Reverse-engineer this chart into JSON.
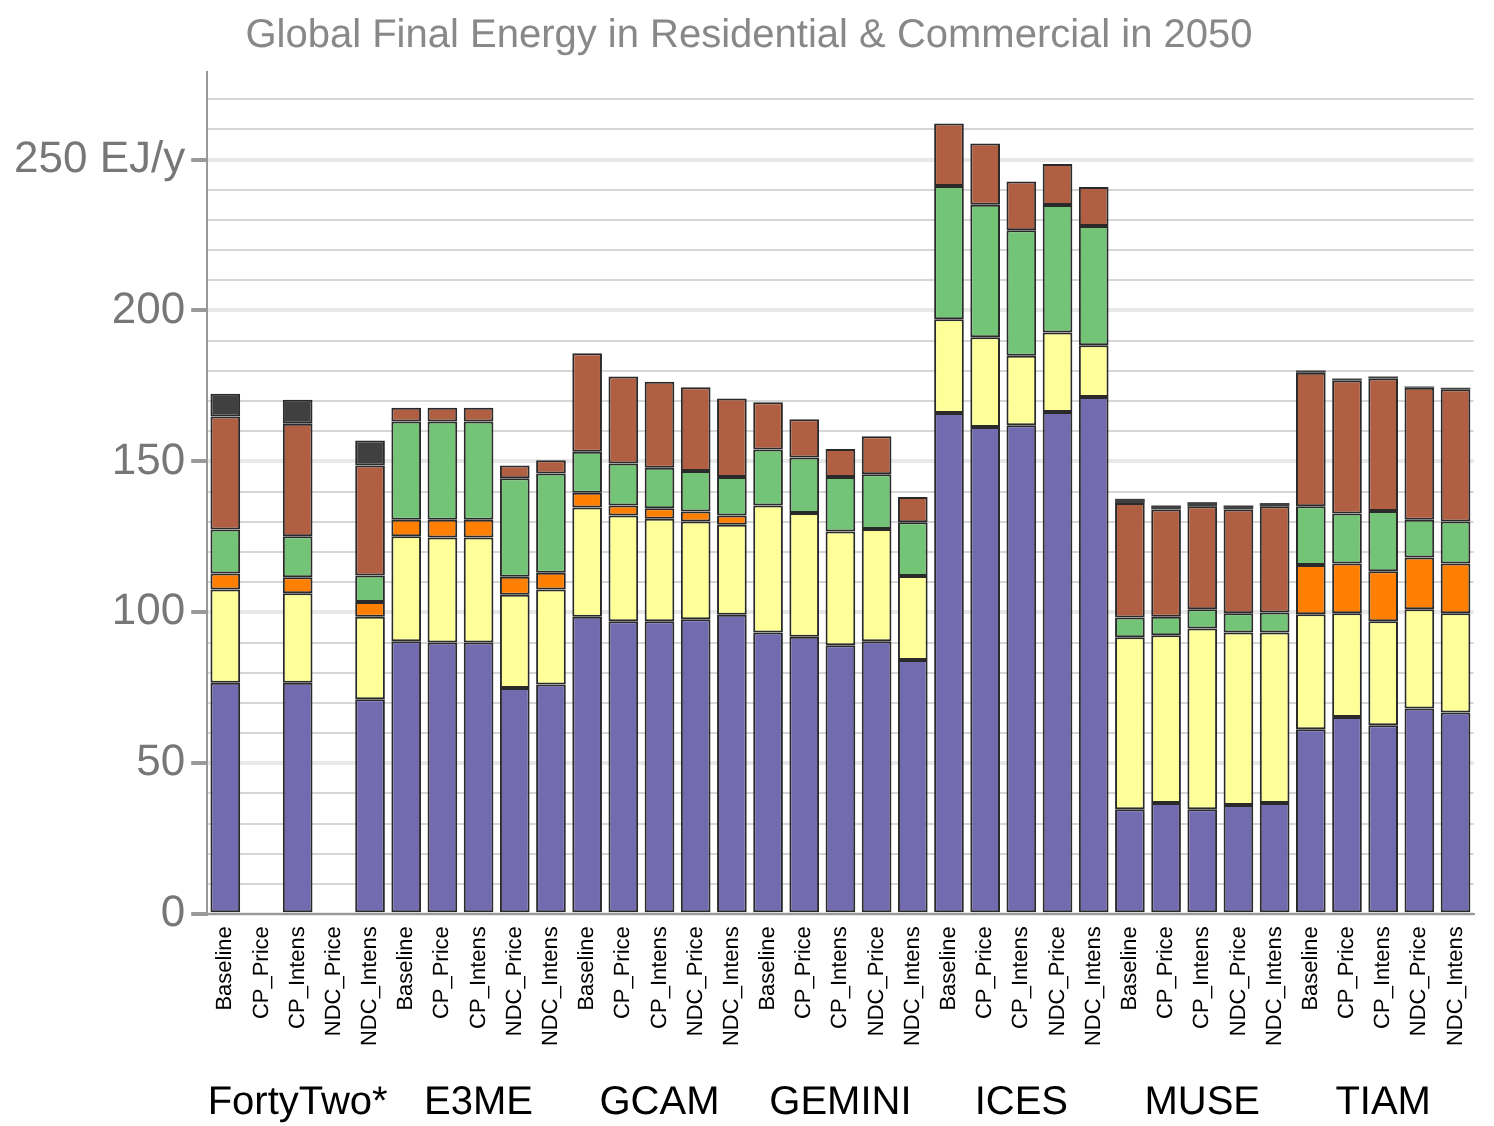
{
  "chart_data": {
    "type": "bar",
    "title": "Global Final Energy in Residential & Commercial in 2050",
    "stacked": true,
    "categories": [
      "Baseline",
      "CP_Price",
      "CP_Intens",
      "NDC_Price",
      "NDC_Intens",
      "Baseline",
      "CP_Price",
      "CP_Intens",
      "NDC_Price",
      "NDC_Intens",
      "Baseline",
      "CP_Price",
      "CP_Intens",
      "NDC_Price",
      "NDC_Intens",
      "Baseline",
      "CP_Price",
      "CP_Intens",
      "NDC_Price",
      "NDC_Intens",
      "Baseline",
      "CP_Price",
      "CP_Intens",
      "NDC_Price",
      "NDC_Intens",
      "Baseline",
      "CP_Price",
      "CP_Intens",
      "NDC_Price",
      "NDC_Intens",
      "Baseline",
      "CP_Price",
      "CP_Intens",
      "NDC_Price",
      "NDC_Intens"
    ],
    "series": [
      {
        "color": "#736bb0",
        "values": [
          76.7,
          0,
          76.7,
          0,
          71.2,
          90.4,
          90.0,
          90.0,
          74.9,
          76.1,
          98.5,
          97.0,
          97.0,
          97.7,
          99.2,
          93.3,
          91.9,
          89.1,
          90.4,
          84.2,
          166.0,
          161.4,
          162.0,
          166.4,
          171.3,
          34.8,
          36.8,
          34.8,
          36.2,
          36.8,
          61.3,
          65.3,
          62.6,
          68.1,
          66.8
        ]
      },
      {
        "color": "#ffff99",
        "values": [
          30.9,
          0,
          29.6,
          0,
          27.3,
          34.8,
          34.8,
          34.8,
          30.9,
          31.5,
          36.2,
          35.1,
          34.0,
          32.4,
          29.8,
          42.1,
          41.0,
          37.7,
          37.2,
          27.8,
          31.1,
          29.7,
          23.0,
          26.3,
          17.2,
          56.9,
          55.6,
          59.8,
          57.1,
          56.5,
          38.1,
          34.4,
          34.4,
          32.9,
          32.9
        ]
      },
      {
        "color": "#ff7f00",
        "values": [
          5.3,
          0,
          5.3,
          0,
          4.9,
          5.5,
          5.9,
          5.9,
          6.0,
          5.5,
          4.9,
          3.3,
          3.5,
          3.3,
          3.1,
          0,
          0,
          0,
          0,
          0,
          0,
          0,
          0,
          0,
          0,
          0,
          0,
          0,
          0,
          0,
          16.3,
          16.5,
          16.6,
          17.2,
          16.5
        ]
      },
      {
        "color": "#73c476",
        "values": [
          14.5,
          0,
          13.6,
          0,
          8.8,
          32.5,
          32.5,
          32.5,
          32.6,
          32.9,
          13.6,
          13.9,
          13.4,
          13.4,
          12.7,
          18.5,
          18.4,
          18.0,
          18.1,
          17.8,
          44.1,
          43.9,
          41.6,
          42.2,
          39.5,
          6.6,
          6.1,
          6.4,
          6.4,
          6.6,
          19.4,
          16.5,
          20.0,
          12.5,
          13.9
        ]
      },
      {
        "color": "#b15f42",
        "values": [
          37.5,
          0,
          37.3,
          0,
          36.4,
          4.6,
          4.6,
          4.6,
          4.2,
          4.4,
          32.6,
          28.8,
          28.5,
          27.8,
          26.0,
          15.7,
          12.7,
          9.3,
          12.6,
          8.4,
          20.7,
          20.3,
          16.1,
          13.6,
          12.9,
          37.9,
          35.6,
          34.1,
          34.4,
          35.2,
          44.3,
          44.1,
          43.9,
          43.7,
          43.8
        ]
      },
      {
        "color": "#404040",
        "values": [
          7.5,
          0,
          7.9,
          0,
          8.3,
          0,
          0,
          0,
          0,
          0,
          0,
          0,
          0,
          0,
          0,
          0,
          0,
          0,
          0,
          0,
          0,
          0,
          0,
          0,
          0,
          1.4,
          1.3,
          1.4,
          1.3,
          1.1,
          0.7,
          0.7,
          0.6,
          0.4,
          0.5
        ]
      }
    ],
    "ylim": [
      0,
      279
    ],
    "yticks": [
      0,
      {
        "value": 10,
        "label": null
      },
      {
        "value": 20,
        "label": null
      },
      {
        "value": 30,
        "label": null
      },
      {
        "value": 40,
        "label": null
      },
      50,
      {
        "value": 60,
        "label": null
      },
      {
        "value": 70,
        "label": null
      },
      {
        "value": 80,
        "label": null
      },
      {
        "value": 90,
        "label": null
      },
      100,
      {
        "value": 110,
        "label": null
      },
      {
        "value": 120,
        "label": null
      },
      {
        "value": 130,
        "label": null
      },
      {
        "value": 140,
        "label": null
      },
      150,
      {
        "value": 160,
        "label": null
      },
      {
        "value": 170,
        "label": null
      },
      {
        "value": 180,
        "label": null
      },
      {
        "value": 190,
        "label": null
      },
      200,
      {
        "value": 210,
        "label": null
      },
      {
        "value": 220,
        "label": null
      },
      {
        "value": 230,
        "label": null
      },
      {
        "value": 240,
        "label": null
      },
      {
        "value": 250,
        "label": "250 EJ/y"
      },
      {
        "value": 260,
        "label": null
      },
      {
        "value": 270,
        "label": null
      }
    ],
    "grid": "y",
    "annotations": [
      "FortyTwo*",
      "E3ME",
      "GCAM",
      "GEMINI",
      "ICES",
      "MUSE",
      "TIAM"
    ]
  }
}
